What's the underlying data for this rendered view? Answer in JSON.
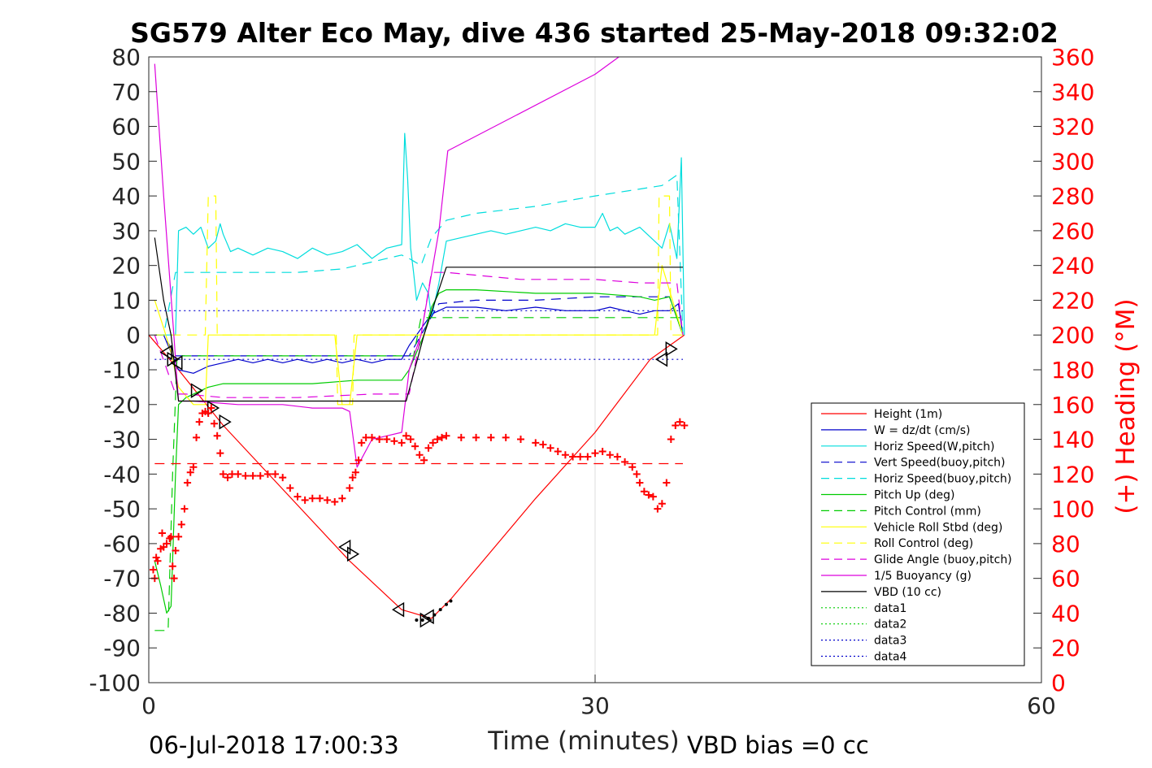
{
  "chart_data": {
    "type": "line",
    "title": "SG579 Alter Eco May, dive 436 started 25-May-2018 09:32:02",
    "xlabel": "Time (minutes)",
    "ylabel_right": "(+) Heading (°M)",
    "xlim": [
      0,
      60
    ],
    "ylim_left": [
      -100,
      80
    ],
    "ylim_right": [
      0,
      360
    ],
    "x_ticks": [
      0,
      30,
      60
    ],
    "y_ticks_left": [
      80,
      70,
      60,
      50,
      40,
      30,
      20,
      10,
      0,
      -10,
      -20,
      -30,
      -40,
      -50,
      -60,
      -70,
      -80,
      -90,
      -100
    ],
    "y_ticks_right": [
      360,
      340,
      320,
      300,
      280,
      260,
      240,
      220,
      200,
      180,
      160,
      140,
      120,
      100,
      80,
      60,
      40,
      20,
      0
    ],
    "grid": "x-only",
    "footer_left": "06-Jul-2018 17:00:33",
    "footer_right": "VBD bias =0 cc",
    "legend_position": "lower-right",
    "series": [
      {
        "name": "Height (1m)",
        "color": "#ff0000",
        "style": "solid",
        "x": [
          0,
          2,
          5,
          13.5,
          17,
          19,
          20.3,
          26,
          30,
          33.7,
          36
        ],
        "y": [
          0,
          -10,
          -26,
          -65,
          -79,
          -81.5,
          -76,
          -47,
          -28,
          -7,
          0
        ]
      },
      {
        "name": "W = dz/dt (cm/s)",
        "color": "#0000cc",
        "style": "solid",
        "x": [
          0.4,
          1,
          1.5,
          2,
          3,
          4,
          5,
          6,
          7,
          8,
          9,
          10,
          11,
          12,
          13,
          14,
          15,
          16,
          17,
          17.5,
          18,
          18.5,
          19,
          19.5,
          20,
          22,
          24,
          26,
          28,
          30,
          31,
          32,
          33,
          34,
          35,
          35.6,
          35.9
        ],
        "y": [
          0,
          0,
          -5,
          -10,
          -11,
          -9,
          -8,
          -7,
          -8,
          -7,
          -8,
          -7,
          -8,
          -7,
          -8,
          -7,
          -8,
          -7,
          -7,
          -3,
          0,
          3,
          6,
          7,
          8,
          8,
          7,
          8,
          7,
          7,
          8,
          7,
          6,
          7,
          7,
          9,
          0
        ]
      },
      {
        "name": "Horiz Speed(W,pitch)",
        "color": "#00dddd",
        "style": "solid",
        "x": [
          0.4,
          1,
          1.5,
          1.8,
          2,
          2.5,
          3,
          3.5,
          4,
          4.5,
          4.8,
          5,
          5.5,
          6,
          7,
          8,
          9,
          10,
          11,
          12,
          13,
          14,
          15,
          16,
          17,
          17.2,
          17.4,
          17.6,
          17.8,
          18,
          18.4,
          18.8,
          19,
          19.5,
          20,
          21,
          22,
          23,
          24,
          25,
          26,
          27,
          28,
          29,
          30,
          30.5,
          31,
          31.5,
          32,
          33,
          34,
          34.5,
          35,
          35.5,
          35.8,
          36
        ],
        "y": [
          0,
          0,
          0,
          0,
          30,
          31,
          29,
          31,
          25,
          27,
          32,
          29,
          24,
          25,
          23,
          25,
          24,
          22,
          25,
          23,
          24,
          26,
          22,
          25,
          26,
          58,
          45,
          25,
          18,
          10,
          15,
          12,
          5,
          15,
          27,
          28,
          29,
          30,
          29,
          30,
          31,
          30,
          32,
          31,
          31,
          35,
          30,
          31,
          29,
          31,
          27,
          25,
          32,
          22,
          51,
          0
        ]
      },
      {
        "name": "Vert Speed(buoy,pitch)",
        "color": "#0000cc",
        "style": "dashed",
        "x": [
          0.4,
          1,
          1.8,
          2.5,
          5,
          10,
          15,
          17.5,
          18.3,
          19.5,
          22,
          26,
          30,
          33,
          35,
          35.9
        ],
        "y": [
          0,
          0,
          -6,
          -6,
          -6,
          -6,
          -6,
          -6,
          0,
          9,
          10,
          10,
          11,
          11,
          11,
          0
        ]
      },
      {
        "name": "Horiz Speed(buoy,pitch)",
        "color": "#00dddd",
        "style": "dashed",
        "x": [
          0.4,
          1,
          1.8,
          2.5,
          5,
          10,
          13,
          17,
          17.5,
          18.3,
          19,
          20,
          22,
          26,
          30,
          33,
          34.5,
          35.5,
          35.9
        ],
        "y": [
          0,
          0,
          18,
          18,
          18,
          18,
          19,
          23,
          22,
          20,
          28,
          33,
          35,
          37,
          40,
          42,
          43,
          46,
          0
        ]
      },
      {
        "name": "Pitch Up (deg)",
        "color": "#00cc00",
        "style": "solid",
        "x": [
          0.4,
          0.8,
          1.2,
          1.5,
          1.8,
          2,
          2.5,
          3,
          4,
          5,
          8,
          11,
          14,
          17,
          17.5,
          18,
          18.5,
          19,
          19.5,
          20,
          22,
          26,
          30,
          33,
          34,
          35,
          35.9
        ],
        "y": [
          -65,
          -72,
          -80,
          -78,
          -40,
          -20,
          -18,
          -17,
          -15,
          -14,
          -14,
          -14,
          -13,
          -13,
          -10,
          -5,
          0,
          8,
          12,
          13,
          13,
          12,
          12,
          11,
          10,
          11,
          0
        ]
      },
      {
        "name": "Pitch Control (mm)",
        "color": "#00cc00",
        "style": "dashed",
        "x": [
          0.4,
          1.2,
          1.3,
          1.6,
          1.9,
          2.2,
          5,
          10,
          15,
          17.8,
          18.3,
          19,
          25,
          30,
          34,
          35.9
        ],
        "y": [
          -85,
          -85,
          -85,
          -40,
          -6,
          -6,
          -6,
          -6,
          -6,
          -6,
          5,
          5,
          5,
          5,
          5,
          5
        ]
      },
      {
        "name": "Vehicle Roll Stbd (deg)",
        "color": "#ffff00",
        "style": "solid",
        "x": [
          0.4,
          1,
          1.5,
          2,
          3,
          3.8,
          4,
          4.5,
          5,
          6,
          10,
          12.5,
          13,
          13.5,
          14,
          15,
          17,
          18,
          20,
          25,
          30,
          34,
          34.5,
          35.9
        ],
        "y": [
          10,
          2,
          -5,
          -15,
          -20,
          -20,
          0,
          0,
          0,
          0,
          0,
          0,
          -20,
          -20,
          0,
          0,
          0,
          0,
          0,
          0,
          0,
          0,
          20,
          0
        ]
      },
      {
        "name": "Roll Control (deg)",
        "color": "#ffff00",
        "style": "dashed",
        "x": [
          0.4,
          2,
          3.8,
          4,
          4.5,
          4.6,
          10,
          12.6,
          12.7,
          13.7,
          13.8,
          34.2,
          34.3,
          35,
          35.1,
          35.9
        ],
        "y": [
          0,
          0,
          0,
          40,
          40,
          0,
          0,
          0,
          -20,
          -20,
          0,
          0,
          40,
          40,
          0,
          0
        ]
      },
      {
        "name": "Glide Angle (buoy,pitch)",
        "color": "#dd00dd",
        "style": "dashed",
        "x": [
          0.4,
          1.8,
          2.5,
          5,
          10,
          15,
          17.5,
          18.3,
          19,
          20,
          25,
          30,
          33,
          35.5,
          35.9
        ],
        "y": [
          0,
          -17,
          -17,
          -18,
          -18,
          -17,
          -17,
          0,
          18,
          18,
          16,
          16,
          15,
          15,
          0
        ]
      },
      {
        "name": "1/5 Buoyancy (g)",
        "color": "#dd00dd",
        "style": "solid",
        "x": [
          0.4,
          1,
          1.6,
          2,
          3,
          6,
          9,
          11,
          13,
          13.5,
          14,
          15,
          16,
          17,
          17.5,
          18.3,
          19.5,
          20.1,
          30,
          31.6
        ],
        "y": [
          78,
          40,
          5,
          -19,
          -19,
          -20,
          -20,
          -21,
          -21,
          -22,
          -38,
          -30,
          -29,
          -28,
          -10,
          0,
          30,
          53,
          75,
          80
        ]
      },
      {
        "name": "VBD (10 cc)",
        "color": "#000000",
        "style": "solid",
        "x": [
          0.4,
          1,
          1.5,
          2,
          3,
          6,
          10,
          15,
          17.3,
          18.5,
          20,
          25,
          30,
          35.9
        ],
        "y": [
          28,
          10,
          0,
          -19,
          -19,
          -19,
          -19,
          -19,
          -19,
          0,
          19.5,
          19.5,
          19.5,
          19.5
        ]
      },
      {
        "name": "data1",
        "color": "#00cc00",
        "style": "dotted",
        "x": [],
        "y": []
      },
      {
        "name": "data2",
        "color": "#00cc00",
        "style": "dotted",
        "x": [],
        "y": []
      },
      {
        "name": "data3",
        "color": "#0000cc",
        "style": "dotted",
        "x": [
          0.4,
          35.9
        ],
        "y": [
          7,
          7
        ]
      },
      {
        "name": "data4",
        "color": "#0000cc",
        "style": "dotted",
        "x": [
          0.4,
          35.9
        ],
        "y": [
          -7,
          -7
        ]
      }
    ],
    "heading_series": {
      "axis": "right",
      "color": "#ff0000",
      "marker": "+",
      "x": [
        0.3,
        0.4,
        0.5,
        0.6,
        0.8,
        0.9,
        1.0,
        1.2,
        1.4,
        1.5,
        1.6,
        1.7,
        1.8,
        2.0,
        2.2,
        2.4,
        2.6,
        2.8,
        3.0,
        3.2,
        3.4,
        3.6,
        3.8,
        4.0,
        4.2,
        4.4,
        4.6,
        4.8,
        5.0,
        5.3,
        5.6,
        6,
        6.5,
        7,
        7.5,
        8,
        8.5,
        9,
        9.5,
        10,
        10.5,
        11,
        11.5,
        12,
        12.5,
        13,
        13.5,
        13.7,
        13.9,
        14.1,
        14.3,
        14.6,
        15,
        15.5,
        16,
        16.5,
        17,
        17.3,
        17.6,
        17.9,
        18.2,
        18.5,
        18.8,
        19.1,
        19.4,
        19.7,
        20,
        21,
        22,
        23,
        24,
        25,
        26,
        26.5,
        27,
        27.5,
        28,
        28.5,
        29,
        29.5,
        30,
        30.5,
        31,
        31.5,
        32,
        32.5,
        32.8,
        33,
        33.3,
        33.6,
        33.9,
        34.2,
        34.5,
        34.8,
        35.1,
        35.4,
        35.7,
        36
      ],
      "y": [
        65,
        60,
        72,
        70,
        77,
        86,
        78,
        80,
        83,
        84,
        67,
        60,
        76,
        84,
        91,
        100,
        115,
        121,
        124,
        141,
        150,
        155,
        156,
        155,
        158,
        149,
        142,
        132,
        120,
        118,
        120,
        120,
        119,
        119,
        119,
        120,
        120,
        118,
        112,
        107,
        105,
        106,
        106,
        105,
        104,
        106,
        112,
        118,
        121,
        128,
        138,
        141,
        141,
        140,
        140,
        139,
        138,
        142,
        140,
        136,
        131,
        128,
        135,
        138,
        140,
        141,
        142,
        141,
        141,
        141,
        141,
        140,
        138,
        137,
        135,
        133,
        131,
        130,
        130,
        130,
        132,
        133,
        131,
        130,
        127,
        124,
        120,
        115,
        110,
        108,
        107,
        100,
        103,
        115,
        140,
        148,
        150,
        148
      ]
    },
    "markers": {
      "color": "#000000",
      "triangles_left": {
        "x": [
          1.2,
          1.9,
          13.2,
          16.8,
          18.8,
          34.5
        ],
        "y": [
          -5,
          -8,
          -61,
          -79,
          -81,
          -7
        ]
      },
      "triangles_right": {
        "x": [
          1.6,
          3.2,
          4.3,
          5.1,
          13.7,
          18.6,
          35.1
        ],
        "y": [
          -7,
          -16,
          -21,
          -25,
          -63,
          -82,
          -4
        ]
      },
      "dots": {
        "x": [
          18.0,
          18.4,
          18.8,
          19.2,
          19.6,
          20.0,
          20.3
        ],
        "y": [
          -82,
          -82,
          -81.5,
          -80.5,
          -79,
          -77.5,
          -76.5
        ]
      }
    },
    "reference_lines": [
      {
        "axis": "left",
        "y": -37,
        "color": "#ff0000",
        "style": "dashed",
        "x": [
          0.4,
          35.9
        ]
      }
    ]
  }
}
